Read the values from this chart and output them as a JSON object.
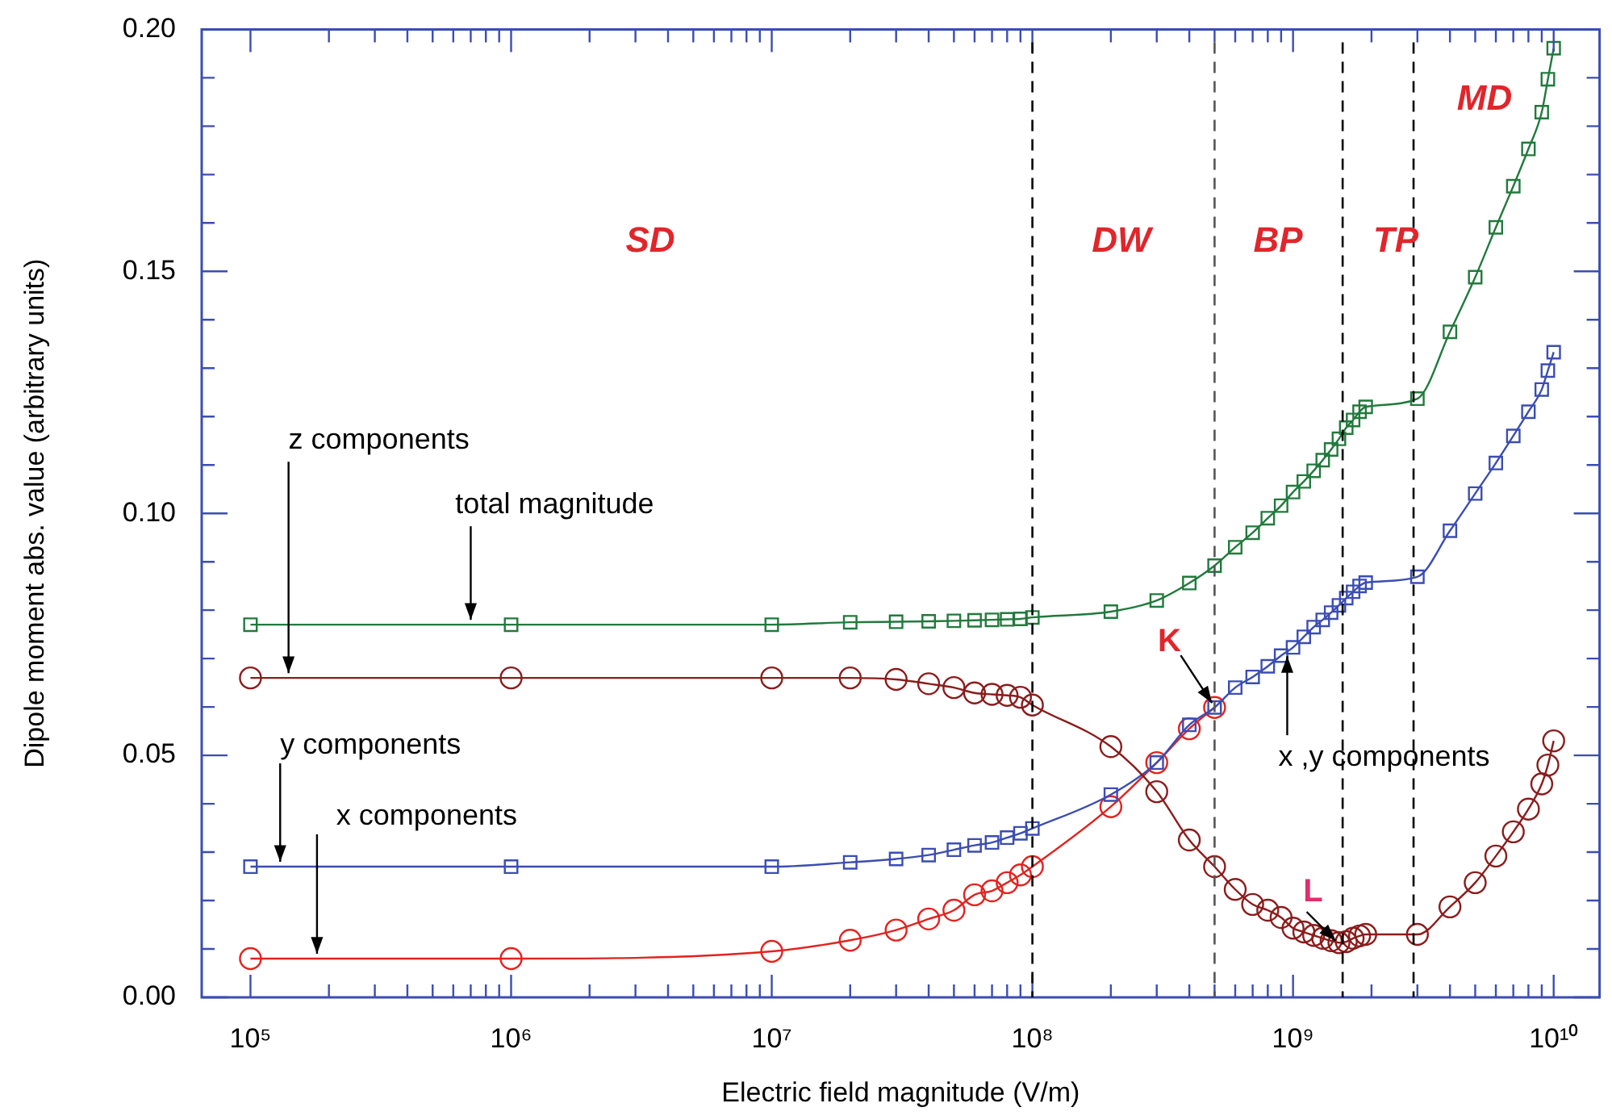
{
  "chart_data": {
    "type": "line",
    "xlabel": "Electric field magnitude (V/m)",
    "ylabel": "Dipole moment abs. value (arbitrary units)",
    "log": "x",
    "grid": false,
    "legend": false,
    "line_style": "solid",
    "xlim": [
      65000,
      15000000000
    ],
    "ylim": [
      0,
      0.2
    ],
    "xticks": [
      {
        "value": 100000,
        "label": "10⁵"
      },
      {
        "value": 200000,
        "label": null
      },
      {
        "value": 300000,
        "label": null
      },
      {
        "value": 400000,
        "label": null
      },
      {
        "value": 500000,
        "label": null
      },
      {
        "value": 600000,
        "label": null
      },
      {
        "value": 700000,
        "label": null
      },
      {
        "value": 800000,
        "label": null
      },
      {
        "value": 900000,
        "label": null
      },
      {
        "value": 1000000,
        "label": "10⁶"
      },
      {
        "value": 2000000,
        "label": null
      },
      {
        "value": 3000000,
        "label": null
      },
      {
        "value": 4000000,
        "label": null
      },
      {
        "value": 5000000,
        "label": null
      },
      {
        "value": 6000000,
        "label": null
      },
      {
        "value": 7000000,
        "label": null
      },
      {
        "value": 8000000,
        "label": null
      },
      {
        "value": 9000000,
        "label": null
      },
      {
        "value": 10000000,
        "label": "10⁷"
      },
      {
        "value": 20000000,
        "label": null
      },
      {
        "value": 30000000,
        "label": null
      },
      {
        "value": 40000000,
        "label": null
      },
      {
        "value": 50000000,
        "label": null
      },
      {
        "value": 60000000,
        "label": null
      },
      {
        "value": 70000000,
        "label": null
      },
      {
        "value": 80000000,
        "label": null
      },
      {
        "value": 90000000,
        "label": null
      },
      {
        "value": 100000000,
        "label": "10⁸"
      },
      {
        "value": 200000000,
        "label": null
      },
      {
        "value": 300000000,
        "label": null
      },
      {
        "value": 400000000,
        "label": null
      },
      {
        "value": 500000000,
        "label": null
      },
      {
        "value": 600000000,
        "label": null
      },
      {
        "value": 700000000,
        "label": null
      },
      {
        "value": 800000000,
        "label": null
      },
      {
        "value": 900000000,
        "label": null
      },
      {
        "value": 1000000000,
        "label": "10⁹"
      },
      {
        "value": 2000000000,
        "label": null
      },
      {
        "value": 3000000000,
        "label": null
      },
      {
        "value": 4000000000,
        "label": null
      },
      {
        "value": 5000000000,
        "label": null
      },
      {
        "value": 6000000000,
        "label": null
      },
      {
        "value": 7000000000,
        "label": null
      },
      {
        "value": 8000000000,
        "label": null
      },
      {
        "value": 9000000000,
        "label": null
      },
      {
        "value": 10000000000,
        "label": "10¹⁰"
      }
    ],
    "yticks": [
      {
        "value": 0,
        "label": "0.00"
      },
      {
        "value": 0.01,
        "label": null
      },
      {
        "value": 0.02,
        "label": null
      },
      {
        "value": 0.03,
        "label": null
      },
      {
        "value": 0.04,
        "label": null
      },
      {
        "value": 0.05,
        "label": "0.05"
      },
      {
        "value": 0.06,
        "label": null
      },
      {
        "value": 0.07,
        "label": null
      },
      {
        "value": 0.08,
        "label": null
      },
      {
        "value": 0.09,
        "label": null
      },
      {
        "value": 0.1,
        "label": "0.10"
      },
      {
        "value": 0.11,
        "label": null
      },
      {
        "value": 0.12,
        "label": null
      },
      {
        "value": 0.13,
        "label": null
      },
      {
        "value": 0.14,
        "label": null
      },
      {
        "value": 0.15,
        "label": "0.15"
      },
      {
        "value": 0.16,
        "label": null
      },
      {
        "value": 0.17,
        "label": null
      },
      {
        "value": 0.18,
        "label": null
      },
      {
        "value": 0.19,
        "label": null
      },
      {
        "value": 0.2,
        "label": "0.20"
      }
    ],
    "series": [
      {
        "color": "#217a3c",
        "marker": "square",
        "x": [
          100000,
          1000000,
          10000000,
          20000000,
          30000000,
          40000000,
          50000000,
          60000000,
          70000000,
          80000000,
          90000000,
          100000000,
          200000000,
          300000000,
          400000000,
          500000000,
          600000000,
          700000000,
          800000000,
          900000000,
          1000000000,
          1100000000,
          1200000000,
          1300000000,
          1400000000,
          1500000000,
          1600000000,
          1700000000,
          1800000000,
          1900000000,
          3000000000,
          4000000000,
          5000000000,
          6000000000,
          7000000000,
          8000000000,
          9000000000,
          9500000000,
          10000000000
        ],
        "values": [
          0.077,
          0.077,
          0.077,
          0.0775,
          0.0776,
          0.0777,
          0.0778,
          0.0779,
          0.078,
          0.0781,
          0.0782,
          0.0785,
          0.0797,
          0.082,
          0.0856,
          0.0892,
          0.093,
          0.096,
          0.099,
          0.1016,
          0.1044,
          0.1066,
          0.1088,
          0.111,
          0.1132,
          0.1154,
          0.1177,
          0.1193,
          0.121,
          0.122,
          0.1237,
          0.1375,
          0.1488,
          0.1591,
          0.1676,
          0.1753,
          0.1829,
          0.1897,
          0.1961
        ]
      },
      {
        "color": "#8b1c1c",
        "marker": "circle",
        "x": [
          100000,
          1000000,
          10000000,
          20000000,
          30000000,
          40000000,
          50000000,
          60000000,
          70000000,
          80000000,
          90000000,
          100000000,
          200000000,
          300000000,
          400000000,
          500000000,
          600000000,
          700000000,
          800000000,
          900000000,
          1000000000,
          1100000000,
          1200000000,
          1300000000,
          1400000000,
          1500000000,
          1600000000,
          1700000000,
          1800000000,
          1900000000,
          3000000000,
          4000000000,
          5000000000,
          6000000000,
          7000000000,
          8000000000,
          9000000000,
          9500000000,
          10000000000
        ],
        "values": [
          0.066,
          0.066,
          0.066,
          0.066,
          0.0657,
          0.0648,
          0.064,
          0.0629,
          0.0626,
          0.0624,
          0.062,
          0.0604,
          0.0518,
          0.0425,
          0.0325,
          0.027,
          0.0223,
          0.0192,
          0.018,
          0.0165,
          0.0143,
          0.0135,
          0.0128,
          0.0122,
          0.0117,
          0.0113,
          0.0115,
          0.0122,
          0.0127,
          0.013,
          0.013,
          0.0187,
          0.0237,
          0.0292,
          0.0342,
          0.0389,
          0.0441,
          0.048,
          0.053
        ]
      },
      {
        "color": "#3b4db3",
        "marker": "square",
        "x": [
          100000,
          1000000,
          10000000,
          20000000,
          30000000,
          40000000,
          50000000,
          60000000,
          70000000,
          80000000,
          90000000,
          100000000,
          200000000,
          300000000,
          400000000,
          500000000,
          600000000,
          700000000,
          800000000,
          900000000,
          1000000000,
          1100000000,
          1200000000,
          1300000000,
          1400000000,
          1500000000,
          1600000000,
          1700000000,
          1800000000,
          1900000000,
          3000000000,
          4000000000,
          5000000000,
          6000000000,
          7000000000,
          8000000000,
          9000000000,
          9500000000,
          10000000000
        ],
        "values": [
          0.027,
          0.027,
          0.027,
          0.0279,
          0.0286,
          0.0294,
          0.0305,
          0.0314,
          0.032,
          0.033,
          0.0339,
          0.0349,
          0.0419,
          0.0485,
          0.0563,
          0.0599,
          0.064,
          0.0662,
          0.0684,
          0.0706,
          0.0723,
          0.0745,
          0.0765,
          0.078,
          0.0795,
          0.081,
          0.0825,
          0.0838,
          0.085,
          0.0857,
          0.0869,
          0.0964,
          0.1041,
          0.1104,
          0.116,
          0.121,
          0.1256,
          0.1295,
          0.1333
        ]
      },
      {
        "color": "#e3221f",
        "marker": "circle",
        "x": [
          100000,
          1000000,
          10000000,
          20000000,
          30000000,
          40000000,
          50000000,
          60000000,
          70000000,
          80000000,
          90000000,
          100000000,
          200000000,
          300000000,
          400000000,
          500000000
        ],
        "values": [
          0.008,
          0.008,
          0.0095,
          0.0118,
          0.0139,
          0.0162,
          0.018,
          0.0212,
          0.022,
          0.0237,
          0.0253,
          0.027,
          0.0394,
          0.0485,
          0.0555,
          0.0599
        ]
      }
    ],
    "ref_lines": [
      {
        "axis": "x",
        "value": 100000000,
        "color": "#000000",
        "line_style": "dashed"
      },
      {
        "axis": "x",
        "value": 500000000,
        "color": "#555555",
        "line_style": "dashed"
      },
      {
        "axis": "x",
        "value": 1550000000,
        "color": "#000000",
        "line_style": "dashed"
      },
      {
        "axis": "x",
        "value": 2900000000,
        "color": "#000000",
        "line_style": "dashed"
      }
    ],
    "annotations": [
      "SD",
      "DW",
      "BP",
      "TP",
      "MD",
      {
        "text": "z components",
        "x": 140000,
        "y": 0.066
      },
      {
        "text": "total magnitude",
        "x": 700000,
        "y": 0.077
      },
      {
        "text": "y components",
        "x": 130000,
        "y": 0.027
      },
      {
        "text": "x components",
        "x": 180000,
        "y": 0.008
      },
      {
        "text": "x ,y components",
        "x": 950000000,
        "y": 0.0715
      },
      {
        "text": "K",
        "x": 500000000,
        "y": 0.06
      },
      {
        "text": "L",
        "x": 1500000000,
        "y": 0.011
      }
    ]
  }
}
